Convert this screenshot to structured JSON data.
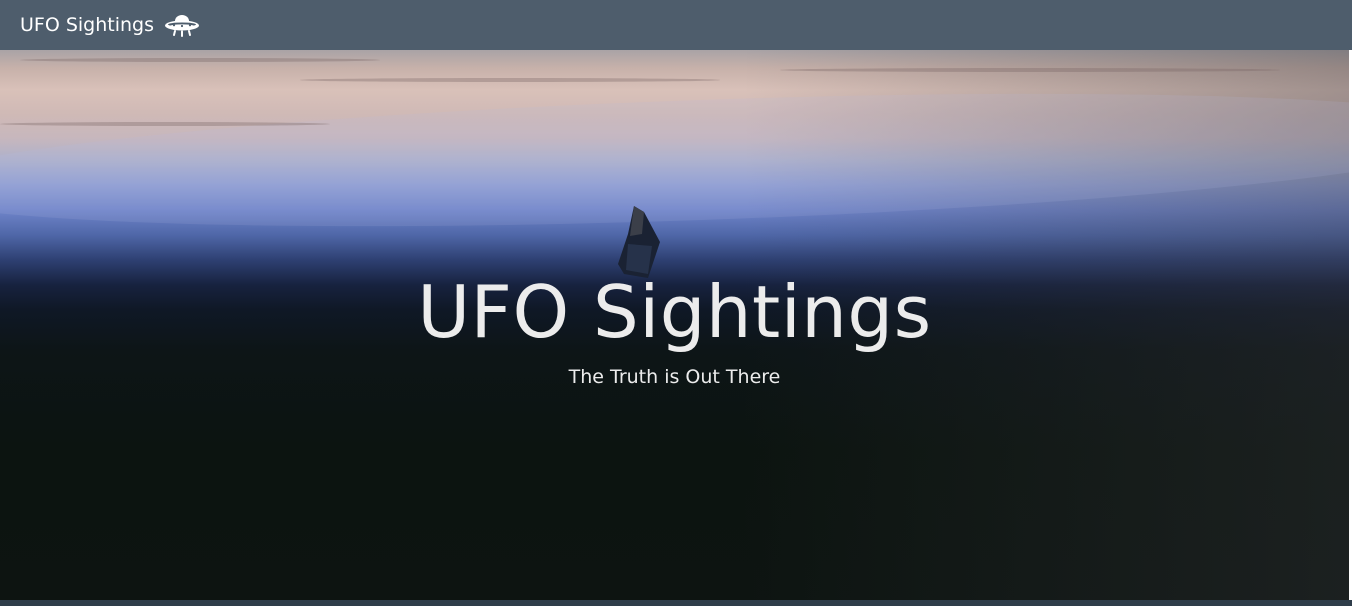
{
  "navbar": {
    "brand_label": "UFO Sightings",
    "brand_icon": "ufo-icon",
    "background": "#4e5d6c"
  },
  "hero": {
    "title": "UFO Sightings",
    "subtitle": "The Truth is Out There",
    "image": "earth-orbit-object-photo",
    "text_color": "#ececec"
  }
}
